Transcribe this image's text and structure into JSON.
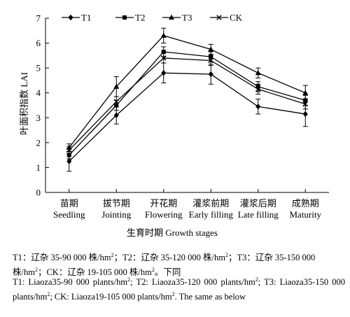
{
  "chart_data": {
    "type": "line",
    "title": "",
    "xlabel": "生育时期 Growth stages",
    "ylabel": "叶面积指数 LAI",
    "ylim": [
      0,
      7
    ],
    "yticks": [
      0,
      1,
      2,
      3,
      4,
      5,
      6,
      7
    ],
    "categories": [
      {
        "cn": "苗期",
        "en": "Seedling"
      },
      {
        "cn": "拔节期",
        "en": "Jointing"
      },
      {
        "cn": "开花期",
        "en": "Flowering"
      },
      {
        "cn": "灌浆前期",
        "en": "Early filling"
      },
      {
        "cn": "灌浆后期",
        "en": "Late filling"
      },
      {
        "cn": "成熟期",
        "en": "Maturity"
      }
    ],
    "legend_position": "top",
    "series": [
      {
        "name": "T1",
        "marker": "diamond",
        "values": [
          1.25,
          3.1,
          4.8,
          4.75,
          3.45,
          3.15
        ],
        "errors": [
          0.4,
          0.35,
          0.4,
          0.4,
          0.3,
          0.5
        ]
      },
      {
        "name": "T2",
        "marker": "square",
        "values": [
          1.5,
          3.5,
          5.65,
          5.45,
          4.25,
          3.7
        ],
        "errors": [
          0.15,
          0.2,
          0.2,
          0.2,
          0.2,
          0.2
        ]
      },
      {
        "name": "T3",
        "marker": "triangle",
        "values": [
          1.8,
          4.25,
          6.3,
          5.75,
          4.8,
          4.0
        ],
        "errors": [
          0.15,
          0.4,
          0.3,
          0.2,
          0.2,
          0.3
        ]
      },
      {
        "name": "CK",
        "marker": "x",
        "values": [
          1.7,
          3.65,
          5.4,
          5.3,
          4.15,
          3.55
        ],
        "errors": [
          0.15,
          0.2,
          0.2,
          0.2,
          0.2,
          0.2
        ]
      }
    ]
  },
  "caption": {
    "cn_html": "T1：辽杂 35-90 000 株/hm<sup>2</sup>；T2：辽杂 35-120 000 株/hm<sup>2</sup>；T3：辽杂 35-150 000 株/hm<sup>2</sup>；CK：辽杂 19-105 000 株/hm<sup>2</sup>。下同",
    "en_html": "T1: Liaoza35-90 000 plants/hm<sup>2</sup>; T2: Liaoza35-120 000 plants/hm<sup>2</sup>; T3: Liaoza35-150 000 plants/hm<sup>2</sup>; CK: Liaoza19-105 000 plants/hm<sup>2</sup>. The same as below"
  }
}
